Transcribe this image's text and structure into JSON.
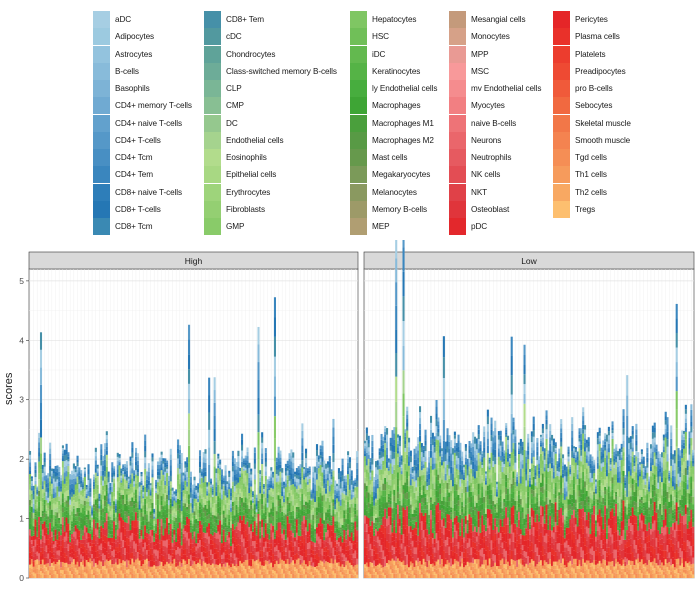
{
  "chart_data": {
    "type": "bar",
    "stacked": true,
    "ylabel": "scores",
    "ylim": [
      0,
      5.2
    ],
    "yticks": [
      0,
      1,
      2,
      3,
      4,
      5
    ],
    "grid": true,
    "legend_position": "top",
    "facets": [
      {
        "label": "High",
        "samples": 180,
        "typical_total": 1.6,
        "peak_total": 4.7
      },
      {
        "label": "Low",
        "samples": 180,
        "typical_total": 2.1,
        "peak_total": 5.1
      }
    ],
    "series": [
      {
        "name": "aDC",
        "color": "#a6cee3"
      },
      {
        "name": "Adipocytes",
        "color": "#9ccae0"
      },
      {
        "name": "Astrocytes",
        "color": "#93c3de"
      },
      {
        "name": "B-cells",
        "color": "#88bbda"
      },
      {
        "name": "Basophils",
        "color": "#7db3d6"
      },
      {
        "name": "CD4+ memory T-cells",
        "color": "#70aad2"
      },
      {
        "name": "CD4+ naive T-cells",
        "color": "#62a1cd"
      },
      {
        "name": "CD4+ T-cells",
        "color": "#5598c8"
      },
      {
        "name": "CD4+ Tcm",
        "color": "#488fc3"
      },
      {
        "name": "CD4+ Tem",
        "color": "#3a86be"
      },
      {
        "name": "CD8+ naive T-cells",
        "color": "#2e7eb9"
      },
      {
        "name": "CD8+ T-cells",
        "color": "#2577b4"
      },
      {
        "name": "CD8+ Tcm",
        "color": "#3a89b3"
      },
      {
        "name": "CD8+ Tem",
        "color": "#4690a8"
      },
      {
        "name": "cDC",
        "color": "#52999f"
      },
      {
        "name": "Chondrocytes",
        "color": "#5fa399"
      },
      {
        "name": "Class-switched memory B-cells",
        "color": "#6dac98"
      },
      {
        "name": "CLP",
        "color": "#7ab696"
      },
      {
        "name": "CMP",
        "color": "#88bf93"
      },
      {
        "name": "DC",
        "color": "#95c88e"
      },
      {
        "name": "Endothelial cells",
        "color": "#a5d38e"
      },
      {
        "name": "Eosinophils",
        "color": "#b2dc8c"
      },
      {
        "name": "Epithelial cells",
        "color": "#a8d883"
      },
      {
        "name": "Erythrocytes",
        "color": "#9ed47b"
      },
      {
        "name": "Fibroblasts",
        "color": "#94cf72"
      },
      {
        "name": "GMP",
        "color": "#89cb69"
      },
      {
        "name": "Hepatocytes",
        "color": "#7fc663"
      },
      {
        "name": "HSC",
        "color": "#70bf58"
      },
      {
        "name": "iDC",
        "color": "#63b94f"
      },
      {
        "name": "Keratinocytes",
        "color": "#55b346"
      },
      {
        "name": "ly Endothelial cells",
        "color": "#47ad3e"
      },
      {
        "name": "Macrophages",
        "color": "#3ea535"
      },
      {
        "name": "Macrophages M1",
        "color": "#4a9f3c"
      },
      {
        "name": "Macrophages M2",
        "color": "#589a45"
      },
      {
        "name": "Mast cells",
        "color": "#66994c"
      },
      {
        "name": "Megakaryocytes",
        "color": "#7b9a59"
      },
      {
        "name": "Melanocytes",
        "color": "#8a9960"
      },
      {
        "name": "Memory B-cells",
        "color": "#9d9a68"
      },
      {
        "name": "MEP",
        "color": "#b09e72"
      },
      {
        "name": "Mesangial cells",
        "color": "#c49a7b"
      },
      {
        "name": "Monocytes",
        "color": "#d6a188"
      },
      {
        "name": "MPP",
        "color": "#e99a94"
      },
      {
        "name": "MSC",
        "color": "#f8999a"
      },
      {
        "name": "mv Endothelial cells",
        "color": "#f58c8e"
      },
      {
        "name": "Myocytes",
        "color": "#f27f82"
      },
      {
        "name": "naive B-cells",
        "color": "#ee7377"
      },
      {
        "name": "Neurons",
        "color": "#ea666b"
      },
      {
        "name": "Neutrophils",
        "color": "#e65a60"
      },
      {
        "name": "NK cells",
        "color": "#e34d54"
      },
      {
        "name": "NKT",
        "color": "#e04148"
      },
      {
        "name": "Osteoblast",
        "color": "#e0353b"
      },
      {
        "name": "pDC",
        "color": "#e3282c"
      },
      {
        "name": "Pericytes",
        "color": "#e52628"
      },
      {
        "name": "Plasma cells",
        "color": "#e9312a"
      },
      {
        "name": "Platelets",
        "color": "#ec3d2e"
      },
      {
        "name": "Preadipocytes",
        "color": "#ee4a33"
      },
      {
        "name": "pro B-cells",
        "color": "#f05a3a"
      },
      {
        "name": "Sebocytes",
        "color": "#f16940"
      },
      {
        "name": "Skeletal muscle",
        "color": "#f27748"
      },
      {
        "name": "Smooth muscle",
        "color": "#f48350"
      },
      {
        "name": "Tgd cells",
        "color": "#f58e55"
      },
      {
        "name": "Th1 cells",
        "color": "#f69b5c"
      },
      {
        "name": "Th2 cells",
        "color": "#f8a862"
      },
      {
        "name": "Tregs",
        "color": "#fdbf6f"
      }
    ]
  }
}
